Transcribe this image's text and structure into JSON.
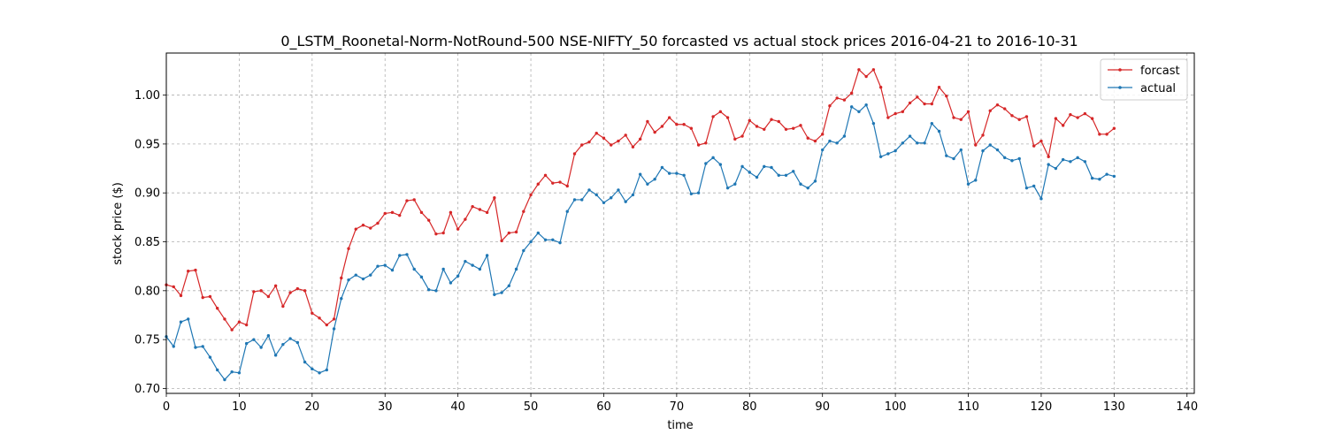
{
  "chart_data": {
    "type": "line",
    "title": "0_LSTM_Roonetal-Norm-NotRound-500 NSE-NIFTY_50 forcasted vs actual stock prices 2016-04-21 to 2016-10-31",
    "xlabel": "time",
    "ylabel": "stock price ($)",
    "xlim": [
      0,
      141
    ],
    "ylim": [
      0.695,
      1.043
    ],
    "xticks": [
      "0",
      "10",
      "20",
      "30",
      "40",
      "50",
      "60",
      "70",
      "80",
      "90",
      "100",
      "110",
      "120",
      "130",
      "140"
    ],
    "yticks": [
      "0.70",
      "0.75",
      "0.80",
      "0.85",
      "0.90",
      "0.95",
      "1.00"
    ],
    "grid": true,
    "legend_position": "top-right",
    "series": [
      {
        "name": "forcast",
        "color": "#d62728",
        "values": [
          0.806,
          0.804,
          0.795,
          0.82,
          0.821,
          0.793,
          0.794,
          0.782,
          0.771,
          0.76,
          0.768,
          0.765,
          0.799,
          0.8,
          0.794,
          0.805,
          0.784,
          0.798,
          0.802,
          0.8,
          0.777,
          0.772,
          0.765,
          0.771,
          0.813,
          0.843,
          0.863,
          0.867,
          0.864,
          0.869,
          0.879,
          0.88,
          0.877,
          0.892,
          0.893,
          0.88,
          0.872,
          0.858,
          0.859,
          0.88,
          0.863,
          0.873,
          0.886,
          0.883,
          0.88,
          0.895,
          0.851,
          0.859,
          0.86,
          0.881,
          0.898,
          0.909,
          0.918,
          0.91,
          0.911,
          0.907,
          0.94,
          0.949,
          0.952,
          0.961,
          0.956,
          0.949,
          0.953,
          0.959,
          0.947,
          0.955,
          0.973,
          0.962,
          0.968,
          0.977,
          0.97,
          0.97,
          0.966,
          0.949,
          0.951,
          0.978,
          0.983,
          0.977,
          0.955,
          0.958,
          0.974,
          0.968,
          0.965,
          0.975,
          0.973,
          0.965,
          0.966,
          0.969,
          0.956,
          0.953,
          0.96,
          0.989,
          0.997,
          0.995,
          1.002,
          1.026,
          1.019,
          1.026,
          1.008,
          0.977,
          0.981,
          0.983,
          0.992,
          0.998,
          0.991,
          0.991,
          1.008,
          0.999,
          0.977,
          0.975,
          0.983,
          0.949,
          0.959,
          0.984,
          0.99,
          0.986,
          0.979,
          0.975,
          0.978,
          0.948,
          0.953,
          0.937,
          0.976,
          0.969,
          0.98,
          0.977,
          0.981,
          0.976,
          0.96,
          0.96,
          0.966
        ]
      },
      {
        "name": "actual",
        "color": "#1f77b4",
        "values": [
          0.753,
          0.743,
          0.768,
          0.771,
          0.742,
          0.743,
          0.732,
          0.719,
          0.709,
          0.717,
          0.716,
          0.746,
          0.75,
          0.742,
          0.754,
          0.734,
          0.745,
          0.751,
          0.747,
          0.727,
          0.72,
          0.716,
          0.719,
          0.761,
          0.792,
          0.811,
          0.816,
          0.812,
          0.816,
          0.825,
          0.826,
          0.821,
          0.836,
          0.837,
          0.822,
          0.814,
          0.801,
          0.8,
          0.822,
          0.808,
          0.815,
          0.83,
          0.826,
          0.822,
          0.836,
          0.796,
          0.798,
          0.805,
          0.822,
          0.841,
          0.85,
          0.859,
          0.852,
          0.852,
          0.849,
          0.881,
          0.893,
          0.893,
          0.903,
          0.898,
          0.89,
          0.895,
          0.903,
          0.891,
          0.898,
          0.919,
          0.909,
          0.914,
          0.926,
          0.92,
          0.92,
          0.918,
          0.899,
          0.9,
          0.93,
          0.936,
          0.929,
          0.905,
          0.909,
          0.927,
          0.921,
          0.916,
          0.927,
          0.926,
          0.918,
          0.918,
          0.922,
          0.909,
          0.905,
          0.912,
          0.944,
          0.953,
          0.951,
          0.958,
          0.988,
          0.983,
          0.99,
          0.971,
          0.937,
          0.94,
          0.943,
          0.951,
          0.958,
          0.951,
          0.951,
          0.971,
          0.963,
          0.938,
          0.935,
          0.944,
          0.909,
          0.913,
          0.943,
          0.949,
          0.944,
          0.936,
          0.933,
          0.935,
          0.905,
          0.907,
          0.894,
          0.929,
          0.925,
          0.934,
          0.932,
          0.936,
          0.932,
          0.915,
          0.914,
          0.919,
          0.917
        ]
      }
    ]
  }
}
